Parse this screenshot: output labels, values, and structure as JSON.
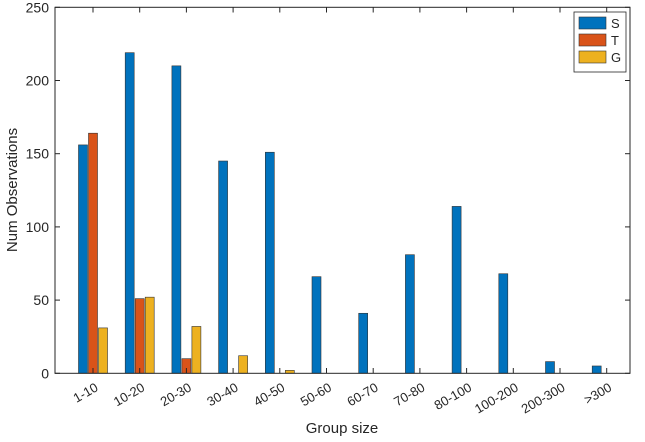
{
  "chart_data": {
    "type": "bar",
    "title": "",
    "xlabel": "Group size",
    "ylabel": "Num Observations",
    "ylim": [
      0,
      250
    ],
    "yticks": [
      0,
      50,
      100,
      150,
      200,
      250
    ],
    "categories": [
      "1-10",
      "10-20",
      "20-30",
      "30-40",
      "40-50",
      "50-60",
      "60-70",
      "70-80",
      "80-100",
      "100-200",
      "200-300",
      ">300"
    ],
    "series": [
      {
        "name": "S",
        "color": "#0072BD",
        "values": [
          156,
          219,
          210,
          145,
          151,
          66,
          41,
          81,
          114,
          68,
          8,
          5
        ]
      },
      {
        "name": "T",
        "color": "#D95319",
        "values": [
          164,
          51,
          10,
          0,
          0,
          0,
          0,
          0,
          0,
          0,
          0,
          0
        ]
      },
      {
        "name": "G",
        "color": "#EDB120",
        "values": [
          31,
          52,
          32,
          12,
          2,
          0,
          0,
          0,
          0,
          0,
          0,
          0
        ]
      }
    ],
    "legend_position": "top-right",
    "grid": false
  }
}
